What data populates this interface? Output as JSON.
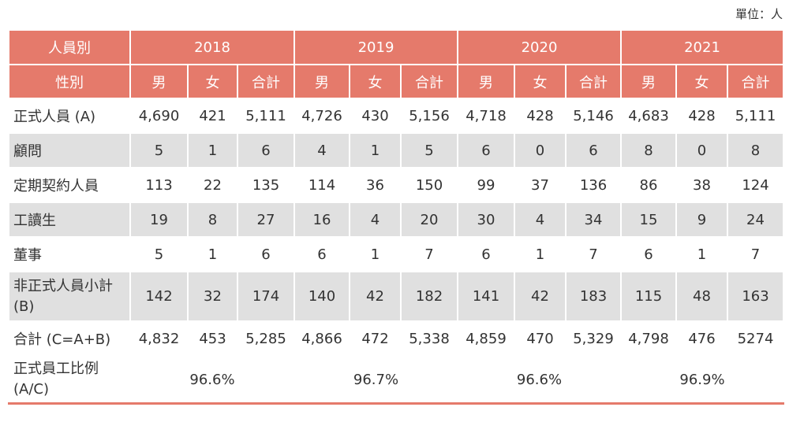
{
  "unit_label": "單位：人",
  "header": {
    "category_label": "人員別",
    "gender_label": "性別",
    "years": [
      "2018",
      "2019",
      "2020",
      "2021"
    ],
    "sub_cols": [
      "男",
      "女",
      "合計"
    ]
  },
  "rows": [
    {
      "label": "正式人員 (A)",
      "values": [
        "4,690",
        "421",
        "5,111",
        "4,726",
        "430",
        "5,156",
        "4,718",
        "428",
        "5,146",
        "4,683",
        "428",
        "5,111"
      ]
    },
    {
      "label": "顧問",
      "values": [
        "5",
        "1",
        "6",
        "4",
        "1",
        "5",
        "6",
        "0",
        "6",
        "8",
        "0",
        "8"
      ]
    },
    {
      "label": "定期契約人員",
      "values": [
        "113",
        "22",
        "135",
        "114",
        "36",
        "150",
        "99",
        "37",
        "136",
        "86",
        "38",
        "124"
      ]
    },
    {
      "label": "工讀生",
      "values": [
        "19",
        "8",
        "27",
        "16",
        "4",
        "20",
        "30",
        "4",
        "34",
        "15",
        "9",
        "24"
      ]
    },
    {
      "label": "董事",
      "values": [
        "5",
        "1",
        "6",
        "6",
        "1",
        "7",
        "6",
        "1",
        "7",
        "6",
        "1",
        "7"
      ]
    },
    {
      "label": "非正式人員小計(B)",
      "values": [
        "142",
        "32",
        "174",
        "140",
        "42",
        "182",
        "141",
        "42",
        "183",
        "115",
        "48",
        "163"
      ]
    },
    {
      "label": "合計 (C=A+B)",
      "values": [
        "4,832",
        "453",
        "5,285",
        "4,866",
        "472",
        "5,338",
        "4,859",
        "470",
        "5,329",
        "4,798",
        "476",
        "5274"
      ]
    }
  ],
  "ratio": {
    "label": "正式員工比例(A/C)",
    "values": [
      "96.6%",
      "96.7%",
      "96.6%",
      "96.9%"
    ]
  }
}
